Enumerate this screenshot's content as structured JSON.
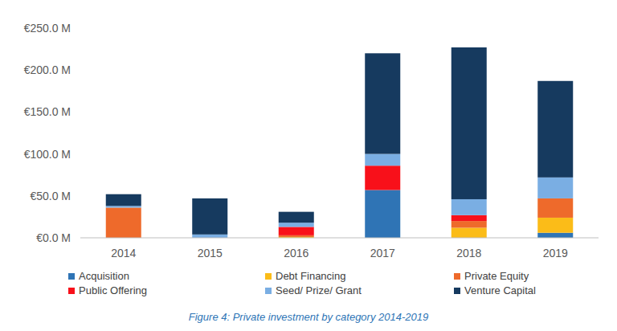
{
  "chart_data": {
    "type": "bar",
    "stacked": true,
    "grid": false,
    "legend": "bottom",
    "title": "Figure 4: Private investment by category 2014-2019",
    "categories": [
      "2014",
      "2015",
      "2016",
      "2017",
      "2018",
      "2019"
    ],
    "ylim": [
      0,
      250
    ],
    "yticks": [
      {
        "value": 0,
        "label": "€0.0 M"
      },
      {
        "value": 50,
        "label": "€50.0 M"
      },
      {
        "value": 100,
        "label": "€100.0 M"
      },
      {
        "value": 150,
        "label": "€150.0 M"
      },
      {
        "value": 200,
        "label": "€200.0 M"
      },
      {
        "value": 250,
        "label": "€250.0 M"
      }
    ],
    "series": [
      {
        "name": "Acquisition",
        "color": "#2f74b5",
        "values": [
          0,
          0,
          0,
          57,
          0,
          6
        ]
      },
      {
        "name": "Debt Financing",
        "color": "#fbbc18",
        "values": [
          0,
          0,
          1,
          0,
          12,
          18
        ]
      },
      {
        "name": "Private Equity",
        "color": "#ee6a2b",
        "values": [
          36,
          0,
          2,
          0,
          8,
          23
        ]
      },
      {
        "name": "Public Offering",
        "color": "#f8101a",
        "values": [
          0,
          0,
          10,
          29,
          7,
          0
        ]
      },
      {
        "name": "Seed/ Prize/ Grant",
        "color": "#7aaee3",
        "values": [
          2,
          4,
          5,
          14,
          19,
          25
        ]
      },
      {
        "name": "Venture Capital",
        "color": "#163a5f",
        "values": [
          14,
          43,
          13,
          120,
          181,
          115
        ]
      }
    ]
  }
}
